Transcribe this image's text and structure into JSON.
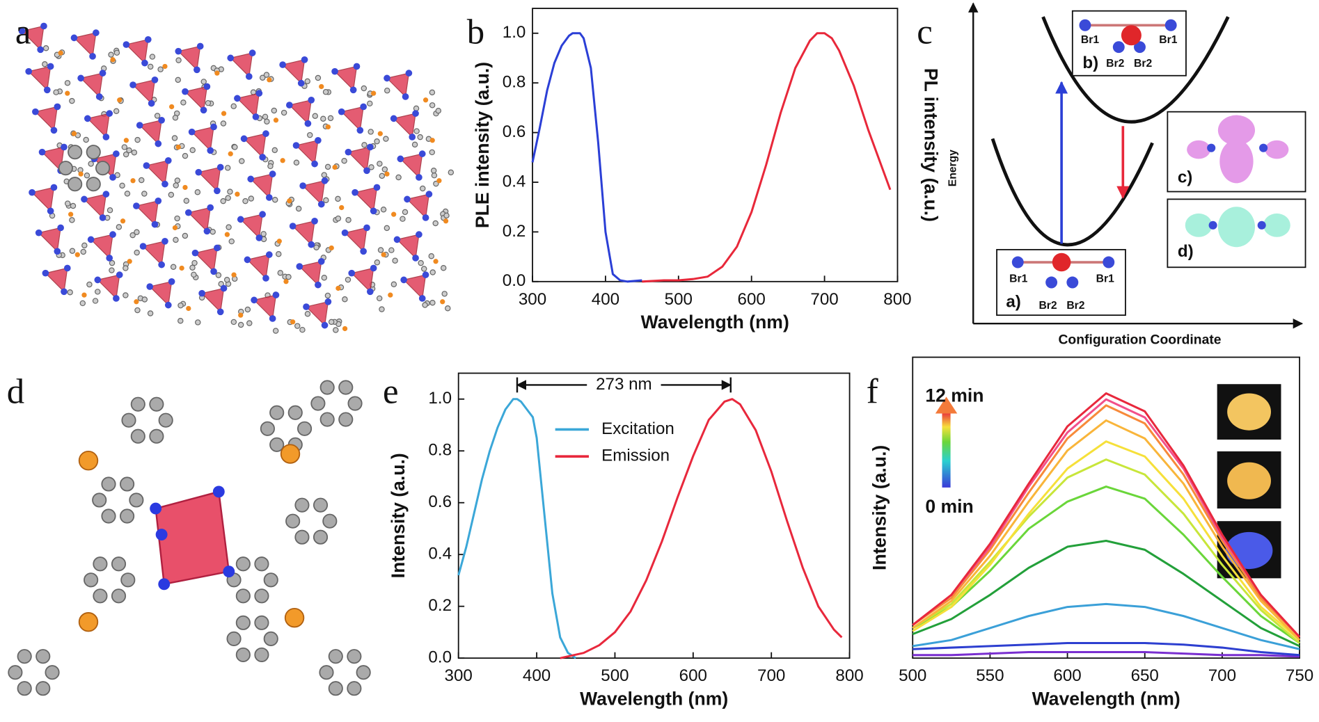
{
  "panel_labels": [
    "a",
    "b",
    "c",
    "d",
    "e",
    "f"
  ],
  "chart_data": [
    {
      "type": "line",
      "xlabel": "Wavelength (nm)",
      "ylabel": "PLE intensity (a.u.)",
      "y2label": "PL intensity (a.u.)",
      "xlim": [
        300,
        800
      ],
      "xticks": [
        300,
        400,
        500,
        600,
        700,
        800
      ],
      "ylim": [
        0,
        1.1
      ],
      "yticks": [
        {
          "value": 0,
          "label": "0.0"
        },
        {
          "value": 0.2,
          "label": "0.2"
        },
        {
          "value": 0.4,
          "label": "0.4"
        },
        {
          "value": 0.6,
          "label": "0.6"
        },
        {
          "value": 0.8,
          "label": "0.8"
        },
        {
          "value": 1,
          "label": "1.0"
        }
      ],
      "series": [
        {
          "color": "#2b3fd6",
          "x": [
            300,
            310,
            320,
            330,
            340,
            350,
            355,
            360,
            365,
            370,
            380,
            390,
            400,
            410,
            420,
            430,
            450
          ],
          "values": [
            0.48,
            0.62,
            0.77,
            0.88,
            0.95,
            0.99,
            1.0,
            1.0,
            1.0,
            0.98,
            0.86,
            0.56,
            0.2,
            0.03,
            0.005,
            0.0,
            0.005
          ]
        },
        {
          "color": "#e8283a",
          "x": [
            450,
            480,
            500,
            520,
            540,
            560,
            580,
            600,
            620,
            640,
            660,
            680,
            690,
            700,
            710,
            720,
            740,
            760,
            780,
            790
          ],
          "values": [
            0.0,
            0.005,
            0.005,
            0.01,
            0.02,
            0.06,
            0.14,
            0.28,
            0.47,
            0.68,
            0.86,
            0.97,
            1.0,
            1.0,
            0.98,
            0.93,
            0.79,
            0.61,
            0.45,
            0.37
          ]
        }
      ]
    },
    {
      "type": "line",
      "xlabel": "Wavelength (nm)",
      "ylabel": "Intensity (a.u.)",
      "xlim": [
        300,
        800
      ],
      "xticks": [
        300,
        400,
        500,
        600,
        700,
        800
      ],
      "ylim": [
        0,
        1.1
      ],
      "yticks": [
        {
          "value": 0,
          "label": "0.0"
        },
        {
          "value": 0.2,
          "label": "0.2"
        },
        {
          "value": 0.4,
          "label": "0.4"
        },
        {
          "value": 0.6,
          "label": "0.6"
        },
        {
          "value": 0.8,
          "label": "0.8"
        },
        {
          "value": 1,
          "label": "1.0"
        }
      ],
      "annotation": {
        "text": "273 nm",
        "from": 375,
        "to": 648
      },
      "series": [
        {
          "name": "Excitation",
          "color": "#3ba7d8",
          "x": [
            300,
            310,
            320,
            330,
            340,
            350,
            360,
            370,
            375,
            380,
            390,
            395,
            400,
            410,
            420,
            430,
            440,
            450
          ],
          "values": [
            0.32,
            0.43,
            0.56,
            0.69,
            0.8,
            0.89,
            0.96,
            1.0,
            1.0,
            0.99,
            0.95,
            0.93,
            0.85,
            0.55,
            0.25,
            0.08,
            0.02,
            0.0
          ]
        },
        {
          "name": "Emission",
          "color": "#e8283c",
          "x": [
            430,
            460,
            480,
            500,
            520,
            540,
            560,
            580,
            600,
            620,
            640,
            650,
            660,
            680,
            700,
            720,
            740,
            760,
            780,
            790
          ],
          "values": [
            0.0,
            0.02,
            0.05,
            0.1,
            0.18,
            0.3,
            0.45,
            0.62,
            0.78,
            0.92,
            0.99,
            1.0,
            0.98,
            0.88,
            0.72,
            0.53,
            0.35,
            0.2,
            0.11,
            0.08
          ]
        }
      ]
    },
    {
      "type": "line",
      "xlabel": "Wavelength (nm)",
      "ylabel": "Intensity (a.u.)",
      "xlim": [
        500,
        750
      ],
      "xticks": [
        500,
        550,
        600,
        650,
        700,
        750
      ],
      "ylim": [
        0,
        1
      ],
      "annotations": [
        {
          "text": "12 min",
          "color": "#e8283c"
        },
        {
          "text": "0 min",
          "color": "#8a2be2"
        }
      ],
      "x": [
        500,
        525,
        550,
        575,
        600,
        625,
        650,
        675,
        700,
        725,
        750
      ],
      "series": [
        {
          "color": "#7a2fd0",
          "values": [
            0.01,
            0.01,
            0.015,
            0.02,
            0.02,
            0.02,
            0.02,
            0.015,
            0.01,
            0.01,
            0.005
          ]
        },
        {
          "color": "#2d3fd0",
          "values": [
            0.03,
            0.035,
            0.04,
            0.045,
            0.05,
            0.05,
            0.05,
            0.045,
            0.035,
            0.02,
            0.01
          ]
        },
        {
          "color": "#3ba0d8",
          "values": [
            0.04,
            0.06,
            0.1,
            0.14,
            0.17,
            0.18,
            0.17,
            0.14,
            0.1,
            0.06,
            0.03
          ]
        },
        {
          "color": "#23a03a",
          "values": [
            0.08,
            0.13,
            0.21,
            0.3,
            0.37,
            0.39,
            0.36,
            0.28,
            0.19,
            0.1,
            0.04
          ]
        },
        {
          "color": "#6ad63a",
          "values": [
            0.1,
            0.17,
            0.29,
            0.43,
            0.52,
            0.57,
            0.53,
            0.41,
            0.27,
            0.14,
            0.05
          ]
        },
        {
          "color": "#c8e63a",
          "values": [
            0.1,
            0.18,
            0.32,
            0.47,
            0.6,
            0.66,
            0.61,
            0.48,
            0.31,
            0.16,
            0.05
          ]
        },
        {
          "color": "#f6e03a",
          "values": [
            0.09,
            0.17,
            0.31,
            0.48,
            0.63,
            0.72,
            0.67,
            0.53,
            0.34,
            0.17,
            0.06
          ]
        },
        {
          "color": "#f9b53a",
          "values": [
            0.1,
            0.19,
            0.34,
            0.52,
            0.69,
            0.79,
            0.73,
            0.58,
            0.37,
            0.19,
            0.06
          ]
        },
        {
          "color": "#f78a3a",
          "values": [
            0.11,
            0.2,
            0.36,
            0.55,
            0.73,
            0.84,
            0.78,
            0.61,
            0.39,
            0.2,
            0.07
          ]
        },
        {
          "color": "#f2508a",
          "values": [
            0.11,
            0.21,
            0.37,
            0.57,
            0.75,
            0.86,
            0.8,
            0.63,
            0.4,
            0.21,
            0.07
          ]
        },
        {
          "color": "#e8283c",
          "values": [
            0.11,
            0.21,
            0.38,
            0.58,
            0.77,
            0.88,
            0.82,
            0.64,
            0.41,
            0.21,
            0.07
          ]
        }
      ]
    }
  ],
  "diagram_c": {
    "y_label": "Energy",
    "x_label": "Configuration Coordinate",
    "box_a": {
      "tag": "a)",
      "labels": [
        "Br1",
        "Br1",
        "Br2",
        "Br2"
      ]
    },
    "box_b": {
      "tag": "b)",
      "labels": [
        "Br1",
        "Br1",
        "Br2",
        "Br2"
      ]
    },
    "box_c": {
      "tag": "c)"
    },
    "box_d": {
      "tag": "d)"
    }
  }
}
